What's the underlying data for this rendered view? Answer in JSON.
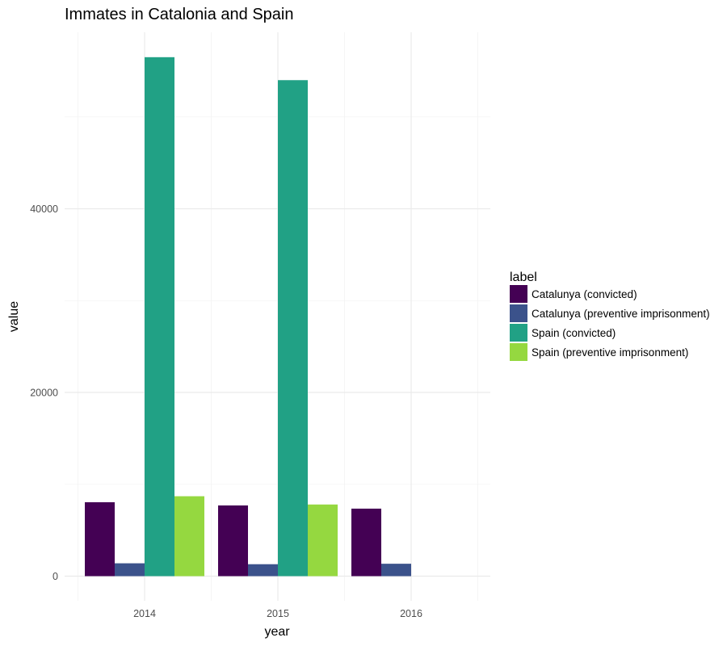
{
  "chart_data": {
    "type": "bar",
    "title": "Immates in Catalonia and Spain",
    "xlabel": "year",
    "ylabel": "value",
    "categories": [
      "2014",
      "2015",
      "2016"
    ],
    "series": [
      {
        "name": "Catalunya (convicted)",
        "color": "#440154",
        "values": [
          8050,
          7700,
          7350
        ]
      },
      {
        "name": "Catalunya (preventive imprisonment)",
        "color": "#3b528b",
        "values": [
          1400,
          1300,
          1350
        ]
      },
      {
        "name": "Spain (convicted)",
        "color": "#21a185",
        "values": [
          56500,
          54000,
          null
        ]
      },
      {
        "name": "Spain (preventive imprisonment)",
        "color": "#95d840",
        "values": [
          8700,
          7800,
          null
        ]
      }
    ],
    "yticks": [
      0,
      20000,
      40000
    ],
    "ylim": [
      -2500,
      59500
    ],
    "grid": true,
    "legend": {
      "title": "label",
      "position": "right"
    }
  }
}
